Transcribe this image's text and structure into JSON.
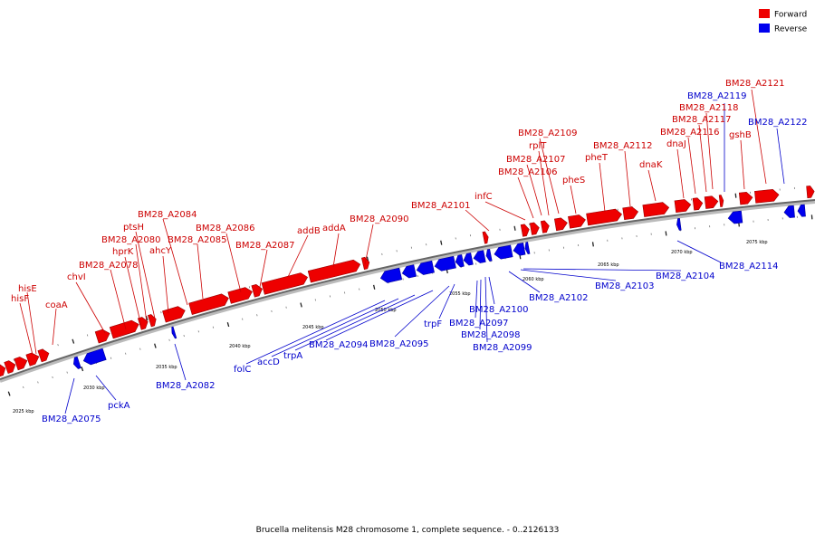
{
  "caption": "Brucella melitensis M28 chromosome 1, complete sequence. - 0..2126133",
  "legend": [
    {
      "label": "Forward",
      "color": "#ee0000"
    },
    {
      "label": "Reverse",
      "color": "#0000ee"
    }
  ],
  "colors": {
    "forward": "#ee0000",
    "reverse": "#0000ee",
    "backbone": "#888888"
  },
  "tick_labels": [
    "2025 kbp",
    "2030 kbp",
    "2035 kbp",
    "2040 kbp",
    "2045 kbp",
    "2050 kbp",
    "2055 kbp",
    "2060 kbp",
    "2065 kbp",
    "2070 kbp",
    "2075 kbp"
  ],
  "forward_genes": [
    "hisE",
    "hisF",
    "coaA",
    "chvI",
    "BM28_A2078",
    "hprK",
    "BM28_A2080",
    "ptsH",
    "ahcY",
    "BM28_A2084",
    "BM28_A2085",
    "BM28_A2086",
    "BM28_A2087",
    "addB",
    "addA",
    "BM28_A2090",
    "BM28_A2101",
    "infC",
    "BM28_A2106",
    "BM28_A2107",
    "rplT",
    "BM28_A2109",
    "pheS",
    "pheT",
    "BM28_A2112",
    "dnaK",
    "dnaJ",
    "BM28_A2116",
    "BM28_A2117",
    "BM28_A2118",
    "gshB",
    "BM28_A2121"
  ],
  "reverse_genes": [
    "BM28_A2075",
    "pckA",
    "BM28_A2082",
    "folC",
    "accD",
    "trpA",
    "BM28_A2094",
    "BM28_A2095",
    "trpF",
    "BM28_A2097",
    "BM28_A2098",
    "BM28_A2099",
    "BM28_A2100",
    "BM28_A2102",
    "BM28_A2103",
    "BM28_A2104",
    "BM28_A2114",
    "BM28_A2119",
    "BM28_A2122"
  ]
}
